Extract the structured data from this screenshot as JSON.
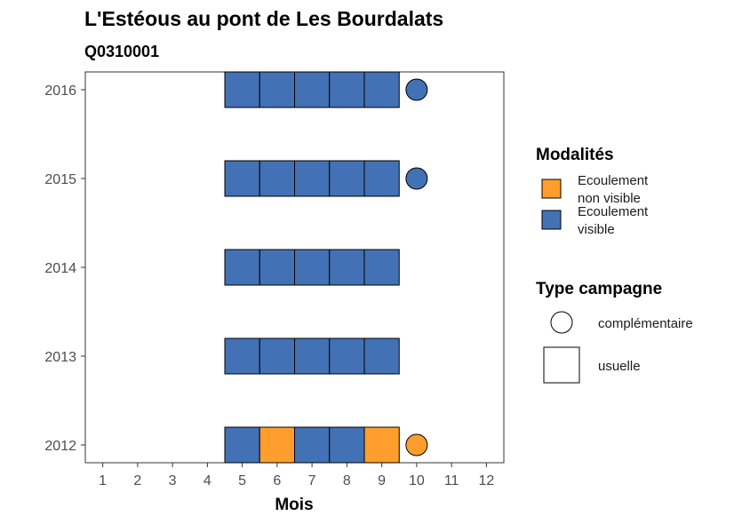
{
  "chart_data": {
    "type": "heatmap",
    "title": "L'Estéous au pont de Les Bourdalats",
    "subtitle": "Q0310001",
    "xlabel": "Mois",
    "ylabel": "",
    "x_ticks": [
      "1",
      "2",
      "3",
      "4",
      "5",
      "6",
      "7",
      "8",
      "9",
      "10",
      "11",
      "12"
    ],
    "y_ticks": [
      "2012",
      "2013",
      "2014",
      "2015",
      "2016"
    ],
    "xlim": [
      0.5,
      12.5
    ],
    "ylim": [
      2011.8,
      2016.2
    ],
    "colors": {
      "Ecoulement non visible": "#FF9E2C",
      "Ecoulement visible": "#4271B5"
    },
    "legend_modalites": {
      "title": "Modalités",
      "items": [
        {
          "key": "Ecoulement non visible",
          "lines": [
            "Ecoulement",
            "non visible"
          ]
        },
        {
          "key": "Ecoulement visible",
          "lines": [
            "Ecoulement",
            "visible"
          ]
        }
      ]
    },
    "legend_campagne": {
      "title": "Type campagne",
      "items": [
        {
          "key": "complementaire",
          "label": "complémentaire",
          "shape": "circle"
        },
        {
          "key": "usuelle",
          "label": "usuelle",
          "shape": "square"
        }
      ]
    },
    "observations": [
      {
        "year": 2012,
        "month": 5,
        "modalite": "Ecoulement visible",
        "campagne": "usuelle"
      },
      {
        "year": 2012,
        "month": 6,
        "modalite": "Ecoulement non visible",
        "campagne": "usuelle"
      },
      {
        "year": 2012,
        "month": 7,
        "modalite": "Ecoulement visible",
        "campagne": "usuelle"
      },
      {
        "year": 2012,
        "month": 8,
        "modalite": "Ecoulement visible",
        "campagne": "usuelle"
      },
      {
        "year": 2012,
        "month": 9,
        "modalite": "Ecoulement non visible",
        "campagne": "usuelle"
      },
      {
        "year": 2012,
        "month": 10,
        "modalite": "Ecoulement non visible",
        "campagne": "complementaire"
      },
      {
        "year": 2013,
        "month": 5,
        "modalite": "Ecoulement visible",
        "campagne": "usuelle"
      },
      {
        "year": 2013,
        "month": 6,
        "modalite": "Ecoulement visible",
        "campagne": "usuelle"
      },
      {
        "year": 2013,
        "month": 7,
        "modalite": "Ecoulement visible",
        "campagne": "usuelle"
      },
      {
        "year": 2013,
        "month": 8,
        "modalite": "Ecoulement visible",
        "campagne": "usuelle"
      },
      {
        "year": 2013,
        "month": 9,
        "modalite": "Ecoulement visible",
        "campagne": "usuelle"
      },
      {
        "year": 2014,
        "month": 5,
        "modalite": "Ecoulement visible",
        "campagne": "usuelle"
      },
      {
        "year": 2014,
        "month": 6,
        "modalite": "Ecoulement visible",
        "campagne": "usuelle"
      },
      {
        "year": 2014,
        "month": 7,
        "modalite": "Ecoulement visible",
        "campagne": "usuelle"
      },
      {
        "year": 2014,
        "month": 8,
        "modalite": "Ecoulement visible",
        "campagne": "usuelle"
      },
      {
        "year": 2014,
        "month": 9,
        "modalite": "Ecoulement visible",
        "campagne": "usuelle"
      },
      {
        "year": 2015,
        "month": 5,
        "modalite": "Ecoulement visible",
        "campagne": "usuelle"
      },
      {
        "year": 2015,
        "month": 6,
        "modalite": "Ecoulement visible",
        "campagne": "usuelle"
      },
      {
        "year": 2015,
        "month": 7,
        "modalite": "Ecoulement visible",
        "campagne": "usuelle"
      },
      {
        "year": 2015,
        "month": 8,
        "modalite": "Ecoulement visible",
        "campagne": "usuelle"
      },
      {
        "year": 2015,
        "month": 9,
        "modalite": "Ecoulement visible",
        "campagne": "usuelle"
      },
      {
        "year": 2015,
        "month": 10,
        "modalite": "Ecoulement visible",
        "campagne": "complementaire"
      },
      {
        "year": 2016,
        "month": 5,
        "modalite": "Ecoulement visible",
        "campagne": "usuelle"
      },
      {
        "year": 2016,
        "month": 6,
        "modalite": "Ecoulement visible",
        "campagne": "usuelle"
      },
      {
        "year": 2016,
        "month": 7,
        "modalite": "Ecoulement visible",
        "campagne": "usuelle"
      },
      {
        "year": 2016,
        "month": 8,
        "modalite": "Ecoulement visible",
        "campagne": "usuelle"
      },
      {
        "year": 2016,
        "month": 9,
        "modalite": "Ecoulement visible",
        "campagne": "usuelle"
      },
      {
        "year": 2016,
        "month": 10,
        "modalite": "Ecoulement visible",
        "campagne": "complementaire"
      }
    ],
    "grid": false,
    "legend_position": "right"
  }
}
